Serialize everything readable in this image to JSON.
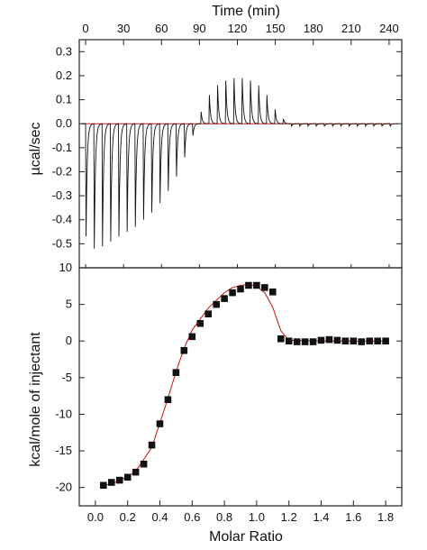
{
  "chart_data": [
    {
      "type": "line",
      "title": "",
      "xlabel": "Time (min)",
      "ylabel": "µcal/sec",
      "xlim": [
        -5,
        250
      ],
      "ylim": [
        -0.6,
        0.35
      ],
      "x_ticks": [
        0,
        30,
        60,
        90,
        120,
        150,
        180,
        210,
        240
      ],
      "y_ticks": [
        -0.5,
        -0.4,
        -0.3,
        -0.2,
        -0.1,
        0.0,
        0.1,
        0.2,
        0.3
      ],
      "y_tick_labels": [
        "-0.5",
        "-0.4",
        "-0.3",
        "-0.2",
        "-0.1",
        "0.0",
        "0.1",
        "0.2",
        "0.3"
      ],
      "grid": false,
      "series": [
        {
          "kind": "injection_peaks",
          "x": [
            0,
            6.5,
            13,
            19.5,
            26,
            32.5,
            39,
            45.5,
            52,
            58.5,
            65,
            71.5,
            78,
            84.5,
            91,
            97.5,
            104,
            110.5,
            117,
            123.5,
            130,
            136.5,
            143,
            149.5,
            156,
            162.5,
            169,
            175.5,
            182,
            188.5,
            195,
            201.5,
            208,
            214.5,
            221,
            227.5,
            234,
            240.5
          ],
          "values": [
            -0.47,
            -0.52,
            -0.51,
            -0.49,
            -0.47,
            -0.45,
            -0.43,
            -0.4,
            -0.37,
            -0.33,
            -0.28,
            -0.22,
            -0.14,
            -0.05,
            0.05,
            0.12,
            0.16,
            0.18,
            0.19,
            0.19,
            0.18,
            0.16,
            0.12,
            0.06,
            0.02,
            -0.01,
            -0.01,
            -0.01,
            -0.01,
            -0.01,
            -0.01,
            -0.01,
            -0.01,
            -0.01,
            -0.01,
            -0.01,
            -0.01,
            -0.01
          ]
        },
        {
          "kind": "baseline",
          "value": 0.0
        }
      ]
    },
    {
      "type": "scatter",
      "title": "",
      "xlabel": "Molar Ratio",
      "ylabel": "kcal/mole of injectant",
      "xlim": [
        -0.1,
        1.9
      ],
      "ylim": [
        -22.5,
        10
      ],
      "x_ticks": [
        0.0,
        0.2,
        0.4,
        0.6,
        0.8,
        1.0,
        1.2,
        1.4,
        1.6,
        1.8
      ],
      "x_tick_labels": [
        "0.0",
        "0.2",
        "0.4",
        "0.6",
        "0.8",
        "1.0",
        "1.2",
        "1.4",
        "1.6",
        "1.8"
      ],
      "y_ticks": [
        -20,
        -15,
        -10,
        -5,
        0,
        5,
        10
      ],
      "y_tick_labels": [
        "-20",
        "-15",
        "-10",
        "-5",
        "0",
        "5",
        "10"
      ],
      "grid": false,
      "series": [
        {
          "kind": "data_points",
          "x": [
            0.05,
            0.1,
            0.15,
            0.2,
            0.25,
            0.3,
            0.35,
            0.4,
            0.45,
            0.5,
            0.55,
            0.6,
            0.65,
            0.7,
            0.75,
            0.8,
            0.85,
            0.9,
            0.95,
            1.0,
            1.05,
            1.1,
            1.15,
            1.2,
            1.25,
            1.3,
            1.35,
            1.4,
            1.45,
            1.5,
            1.55,
            1.6,
            1.65,
            1.7,
            1.75,
            1.8
          ],
          "values": [
            -19.7,
            -19.3,
            -19.0,
            -18.6,
            -17.9,
            -16.8,
            -14.2,
            -11.3,
            -8.0,
            -4.3,
            -1.3,
            0.6,
            2.4,
            3.7,
            5.0,
            5.8,
            6.6,
            7.1,
            7.6,
            7.6,
            7.3,
            6.7,
            0.3,
            0.0,
            -0.1,
            -0.1,
            -0.1,
            0.1,
            0.2,
            0.1,
            0.0,
            0.0,
            -0.1,
            0.0,
            0.0,
            0.0
          ]
        },
        {
          "kind": "fit",
          "x": [
            0.05,
            0.15,
            0.25,
            0.35,
            0.4,
            0.45,
            0.5,
            0.55,
            0.6,
            0.7,
            0.8,
            0.85,
            0.9,
            0.95,
            1.0,
            1.05,
            1.1,
            1.15,
            1.2,
            1.4,
            1.6,
            1.8
          ],
          "values": [
            -19.8,
            -19.1,
            -17.8,
            -14.5,
            -11.2,
            -7.8,
            -4.2,
            -1.0,
            1.5,
            4.5,
            6.6,
            7.3,
            7.6,
            7.7,
            7.5,
            6.6,
            4.6,
            1.4,
            0.1,
            0.0,
            0.0,
            0.0
          ]
        }
      ]
    }
  ]
}
